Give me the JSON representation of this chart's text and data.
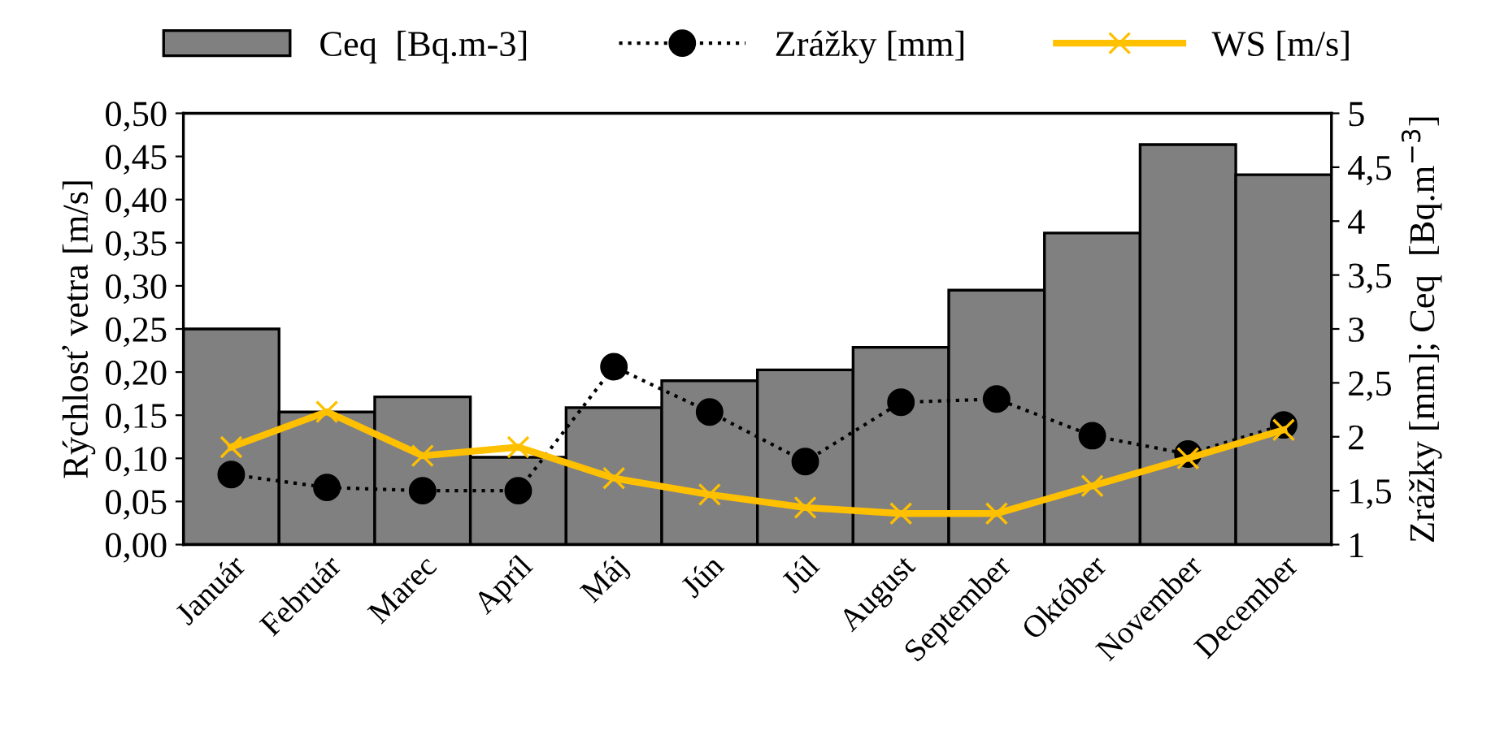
{
  "chart_data": {
    "type": "bar",
    "categories": [
      "Január",
      "Február",
      "Marec",
      "Apríl",
      "Máj",
      "Jún",
      "Júl",
      "August",
      "September",
      "Október",
      "November",
      "December"
    ],
    "ylabel": "Rýchlosť vetra [m/s]",
    "y2label": "Zrážky [mm]; Ceq  [Bq.m$^{−3}$]",
    "ylim": [
      0,
      0.5
    ],
    "yticks": [
      {
        "value": 0,
        "label": "0,00"
      },
      {
        "value": 0.05,
        "label": "0,05"
      },
      {
        "value": 0.1,
        "label": "0,10"
      },
      {
        "value": 0.15,
        "label": "0,15"
      },
      {
        "value": 0.2,
        "label": "0,20"
      },
      {
        "value": 0.25,
        "label": "0,25"
      },
      {
        "value": 0.3,
        "label": "0,30"
      },
      {
        "value": 0.35,
        "label": "0,35"
      },
      {
        "value": 0.4,
        "label": "0,40"
      },
      {
        "value": 0.45,
        "label": "0,45"
      },
      {
        "value": 0.5,
        "label": "0,50"
      }
    ],
    "y2lim": [
      1,
      5
    ],
    "y2ticks": [
      1,
      {
        "value": 1.5,
        "label": "1,5"
      },
      2,
      {
        "value": 2.5,
        "label": "2,5"
      },
      3,
      {
        "value": 3.5,
        "label": "3,5"
      },
      4,
      {
        "value": 4.5,
        "label": "4,5"
      },
      5
    ],
    "legend": "top",
    "grid": false,
    "series": [
      {
        "name": "Ceq  [Bq.m-3]",
        "axis": "y2",
        "color": "#808080",
        "values": [
          3.0,
          2.23,
          2.37,
          1.81,
          2.27,
          2.52,
          2.62,
          2.83,
          3.36,
          3.89,
          4.71,
          4.43
        ]
      },
      {
        "name": "Zrážky [mm]",
        "type": "line",
        "axis": "y2",
        "color": "#000000",
        "marker": "circle",
        "line_style": "dotted",
        "values": [
          1.65,
          1.53,
          1.5,
          1.5,
          2.65,
          2.23,
          1.77,
          2.32,
          2.35,
          2.01,
          1.84,
          2.11
        ]
      },
      {
        "name": "WS [m/s]",
        "type": "line",
        "color": "#ffc000",
        "marker": "cross",
        "line_style": "solid",
        "values": [
          0.113,
          0.154,
          0.103,
          0.113,
          0.077,
          0.058,
          0.043,
          0.036,
          0.036,
          0.068,
          0.1,
          0.133
        ]
      }
    ]
  }
}
